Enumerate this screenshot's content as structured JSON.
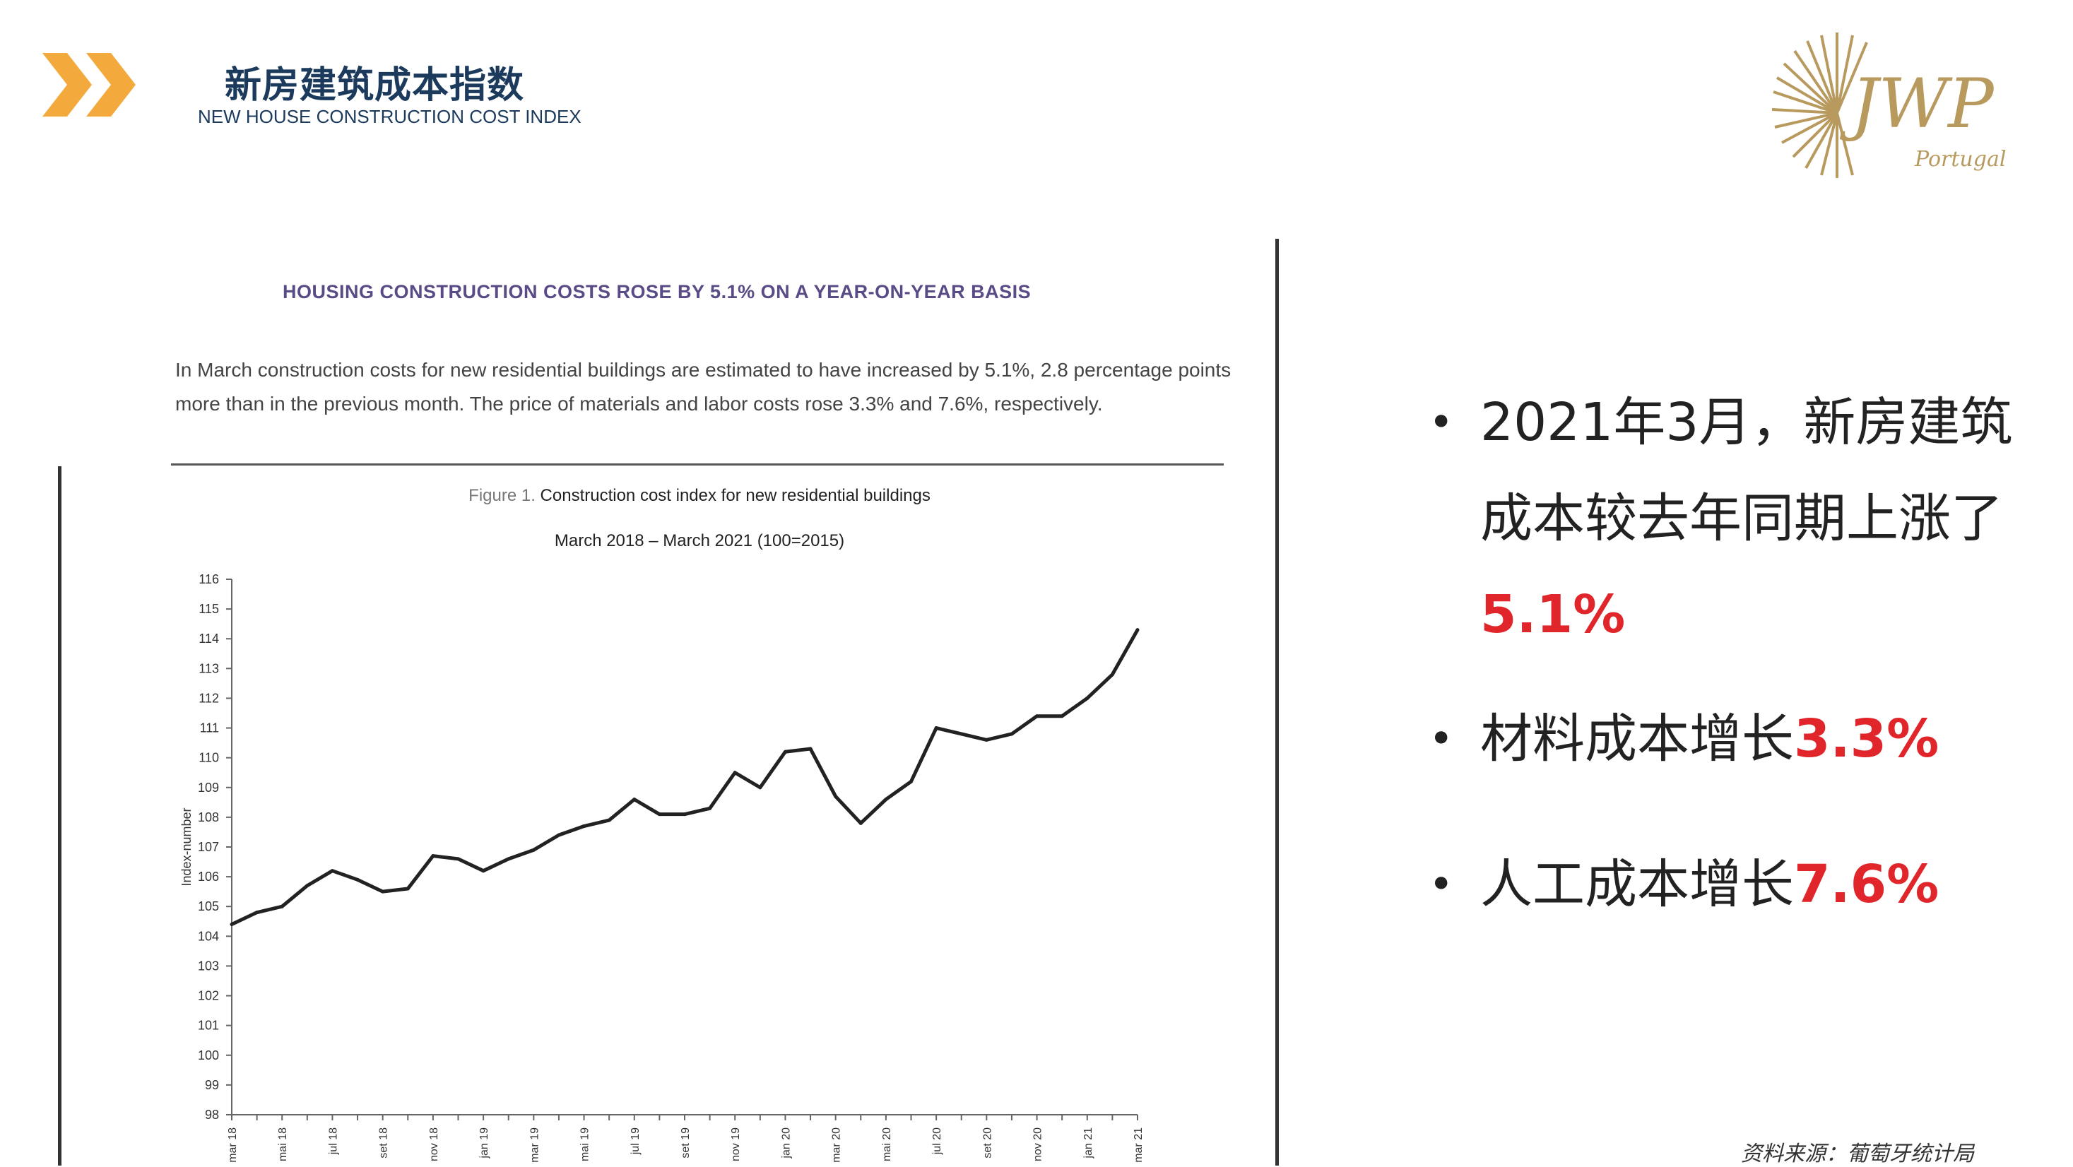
{
  "header": {
    "title_cn": "新房建筑成本指数",
    "title_en": "NEW HOUSE CONSTRUCTION COST INDEX"
  },
  "logo": {
    "text": "JWP",
    "sub": "Portugal"
  },
  "article": {
    "heading": "HOUSING CONSTRUCTION COSTS ROSE BY 5.1% ON A YEAR-ON-YEAR BASIS",
    "body": "In March construction costs for new residential buildings are estimated to have increased by 5.1%, 2.8 percentage points more than in the previous month. The price of materials and labor costs rose 3.3% and 7.6%, respectively."
  },
  "figure": {
    "prefix": "Figure 1.",
    "title": "Construction cost index for new residential buildings",
    "subtitle": "March 2018 – March 2021 (100=2015)"
  },
  "chart_data": {
    "type": "line",
    "title": "Construction cost index for new residential buildings",
    "subtitle": "March 2018 – March 2021 (100=2015)",
    "xlabel": "",
    "ylabel": "Index-number",
    "ylim": [
      98,
      116
    ],
    "yticks": [
      98,
      99,
      100,
      101,
      102,
      103,
      104,
      105,
      106,
      107,
      108,
      109,
      110,
      111,
      112,
      113,
      114,
      115,
      116
    ],
    "xtick_labels": [
      "mar 18",
      "mai 18",
      "jul 18",
      "set 18",
      "nov 18",
      "jan 19",
      "mar 19",
      "mai 19",
      "jul 19",
      "set 19",
      "nov 19",
      "jan 20",
      "mar 20",
      "mai 20",
      "jul 20",
      "set 20",
      "nov 20",
      "jan 21",
      "mar 21"
    ],
    "x": [
      "mar 18",
      "abr 18",
      "mai 18",
      "jun 18",
      "jul 18",
      "ago 18",
      "set 18",
      "out 18",
      "nov 18",
      "dez 18",
      "jan 19",
      "fev 19",
      "mar 19",
      "abr 19",
      "mai 19",
      "jun 19",
      "jul 19",
      "ago 19",
      "set 19",
      "out 19",
      "nov 19",
      "dez 19",
      "jan 20",
      "fev 20",
      "mar 20",
      "abr 20",
      "mai 20",
      "jun 20",
      "jul 20",
      "ago 20",
      "set 20",
      "out 20",
      "nov 20",
      "dez 20",
      "jan 21",
      "fev 21",
      "mar 21"
    ],
    "series": [
      {
        "values": [
          104.4,
          104.8,
          105.0,
          105.7,
          106.2,
          105.9,
          105.5,
          105.6,
          106.7,
          106.6,
          106.2,
          106.6,
          106.9,
          107.4,
          107.7,
          107.9,
          108.6,
          108.1,
          108.1,
          108.3,
          109.5,
          109.0,
          110.2,
          110.3,
          108.7,
          107.8,
          108.6,
          109.2,
          111.0,
          110.8,
          110.6,
          110.8,
          111.4,
          111.4,
          112.0,
          112.8,
          114.3
        ]
      }
    ],
    "grid": false,
    "line_color": "#222222"
  },
  "bullets": [
    {
      "text": "2021年3月，新房建筑成本较去年同期上涨了",
      "value": "5.1%"
    },
    {
      "text": "材料成本增长",
      "value": "3.3%"
    },
    {
      "text": "人工成本增长",
      "value": "7.6%"
    }
  ],
  "source": "资料来源：葡萄牙统计局",
  "colors": {
    "accent": "#e0262b",
    "chevron": "#f4a93c",
    "title": "#1b3a5c",
    "logo_gold": "#b89a5e"
  }
}
